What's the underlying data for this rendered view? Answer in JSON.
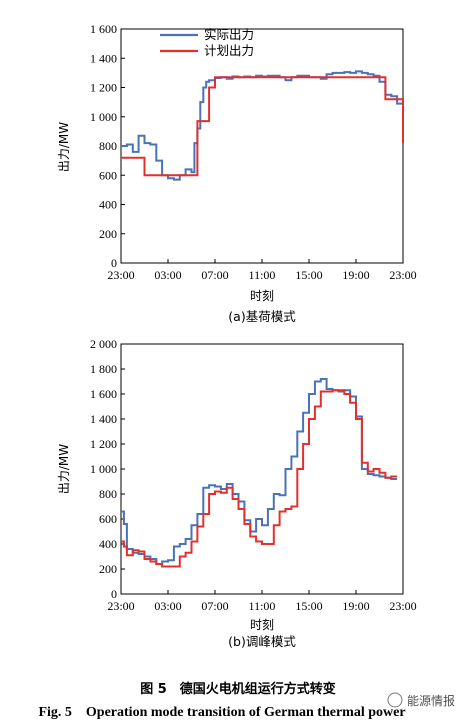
{
  "colors": {
    "actual": "#4a72b8",
    "plan": "#e0312d"
  },
  "watermark": "能源情报",
  "caption": {
    "cn": "图 5　德国火电机组运行方式转变",
    "en": "Fig. 5　Operation mode transition of German thermal power"
  },
  "chart_data": [
    {
      "type": "line",
      "subtitle": "(a)基荷模式",
      "xlabel": "时刻",
      "ylabel": "出力/MW",
      "x_ticks": [
        "23:00",
        "03:00",
        "07:00",
        "11:00",
        "15:00",
        "19:00",
        "23:00"
      ],
      "y_ticks": [
        "0",
        "200",
        "400",
        "600",
        "800",
        "1 000",
        "1 200",
        "1 400",
        "1 600"
      ],
      "xlim": [
        0,
        24
      ],
      "ylim": [
        0,
        1600
      ],
      "legend": {
        "position": "top-left",
        "entries": [
          "实际出力",
          "计划出力"
        ]
      },
      "series": [
        {
          "name": "实际出力",
          "step": true,
          "x": [
            0,
            0.5,
            1,
            1.5,
            2,
            2.5,
            3,
            3.5,
            4,
            4.5,
            5,
            5.5,
            6,
            6.25,
            6.5,
            6.75,
            7,
            7.25,
            7.5,
            8,
            8.5,
            9,
            9.5,
            10,
            10.5,
            11,
            11.5,
            12,
            12.5,
            13,
            13.5,
            14,
            14.5,
            15,
            15.5,
            16,
            16.5,
            17,
            17.5,
            18,
            18.5,
            19,
            19.5,
            20,
            20.5,
            21,
            21.5,
            22,
            22.5,
            23,
            23.5
          ],
          "y": [
            800,
            810,
            760,
            870,
            820,
            810,
            700,
            600,
            580,
            570,
            600,
            640,
            620,
            820,
            920,
            1100,
            1200,
            1240,
            1250,
            1265,
            1270,
            1260,
            1275,
            1270,
            1275,
            1270,
            1280,
            1275,
            1280,
            1280,
            1270,
            1250,
            1270,
            1280,
            1280,
            1270,
            1270,
            1260,
            1290,
            1300,
            1300,
            1305,
            1300,
            1310,
            1300,
            1290,
            1280,
            1240,
            1150,
            1140,
            1090
          ]
        },
        {
          "name": "计划出力",
          "step": true,
          "x": [
            0,
            0.5,
            2,
            6.5,
            7.5,
            8,
            21.5,
            22.5,
            24
          ],
          "y": [
            720,
            720,
            600,
            970,
            1200,
            1270,
            1270,
            1120,
            820
          ]
        }
      ]
    },
    {
      "type": "line",
      "subtitle": "(b)调峰模式",
      "xlabel": "时刻",
      "ylabel": "出力/MW",
      "x_ticks": [
        "23:00",
        "03:00",
        "07:00",
        "11:00",
        "15:00",
        "19:00",
        "23:00"
      ],
      "y_ticks": [
        "0",
        "200",
        "400",
        "600",
        "800",
        "1 000",
        "1 200",
        "1 400",
        "1 600",
        "1 800",
        "2 000"
      ],
      "xlim": [
        0,
        24
      ],
      "ylim": [
        0,
        2000
      ],
      "series": [
        {
          "name": "实际出力",
          "step": true,
          "x": [
            0,
            0.25,
            0.5,
            1,
            1.5,
            2,
            2.5,
            3,
            3.5,
            4,
            4.5,
            5,
            5.5,
            6,
            6.5,
            7,
            7.5,
            8,
            8.5,
            9,
            9.5,
            10,
            10.5,
            11,
            11.5,
            12,
            12.5,
            13,
            13.5,
            14,
            14.5,
            15,
            15.5,
            16,
            16.5,
            17,
            17.5,
            18,
            18.5,
            19,
            19.5,
            20,
            20.5,
            21,
            21.5,
            22,
            22.5,
            23
          ],
          "y": [
            660,
            560,
            360,
            330,
            320,
            300,
            280,
            240,
            260,
            270,
            380,
            400,
            440,
            550,
            640,
            850,
            870,
            860,
            840,
            880,
            800,
            740,
            590,
            500,
            600,
            550,
            680,
            800,
            790,
            1000,
            1100,
            1300,
            1450,
            1600,
            1700,
            1720,
            1640,
            1630,
            1620,
            1630,
            1580,
            1420,
            1000,
            960,
            950,
            940,
            930,
            920
          ]
        },
        {
          "name": "计划出力",
          "step": true,
          "x": [
            0,
            0.25,
            0.5,
            1,
            1.5,
            2,
            2.5,
            3,
            3.5,
            4,
            5,
            5.5,
            6,
            6.5,
            7,
            7.5,
            8,
            8.5,
            9,
            9.5,
            10,
            10.5,
            11,
            11.5,
            12,
            13,
            13.5,
            14,
            14.5,
            15,
            15.5,
            16,
            16.5,
            17,
            18,
            19,
            19.5,
            20,
            20.5,
            21,
            21.5,
            22,
            22.5,
            23
          ],
          "y": [
            420,
            380,
            310,
            350,
            340,
            280,
            260,
            240,
            220,
            220,
            300,
            330,
            420,
            540,
            640,
            800,
            820,
            810,
            850,
            760,
            680,
            560,
            460,
            420,
            400,
            550,
            660,
            680,
            700,
            1000,
            1200,
            1400,
            1500,
            1620,
            1630,
            1600,
            1530,
            1400,
            1050,
            980,
            1000,
            970,
            930,
            940
          ]
        }
      ]
    }
  ]
}
